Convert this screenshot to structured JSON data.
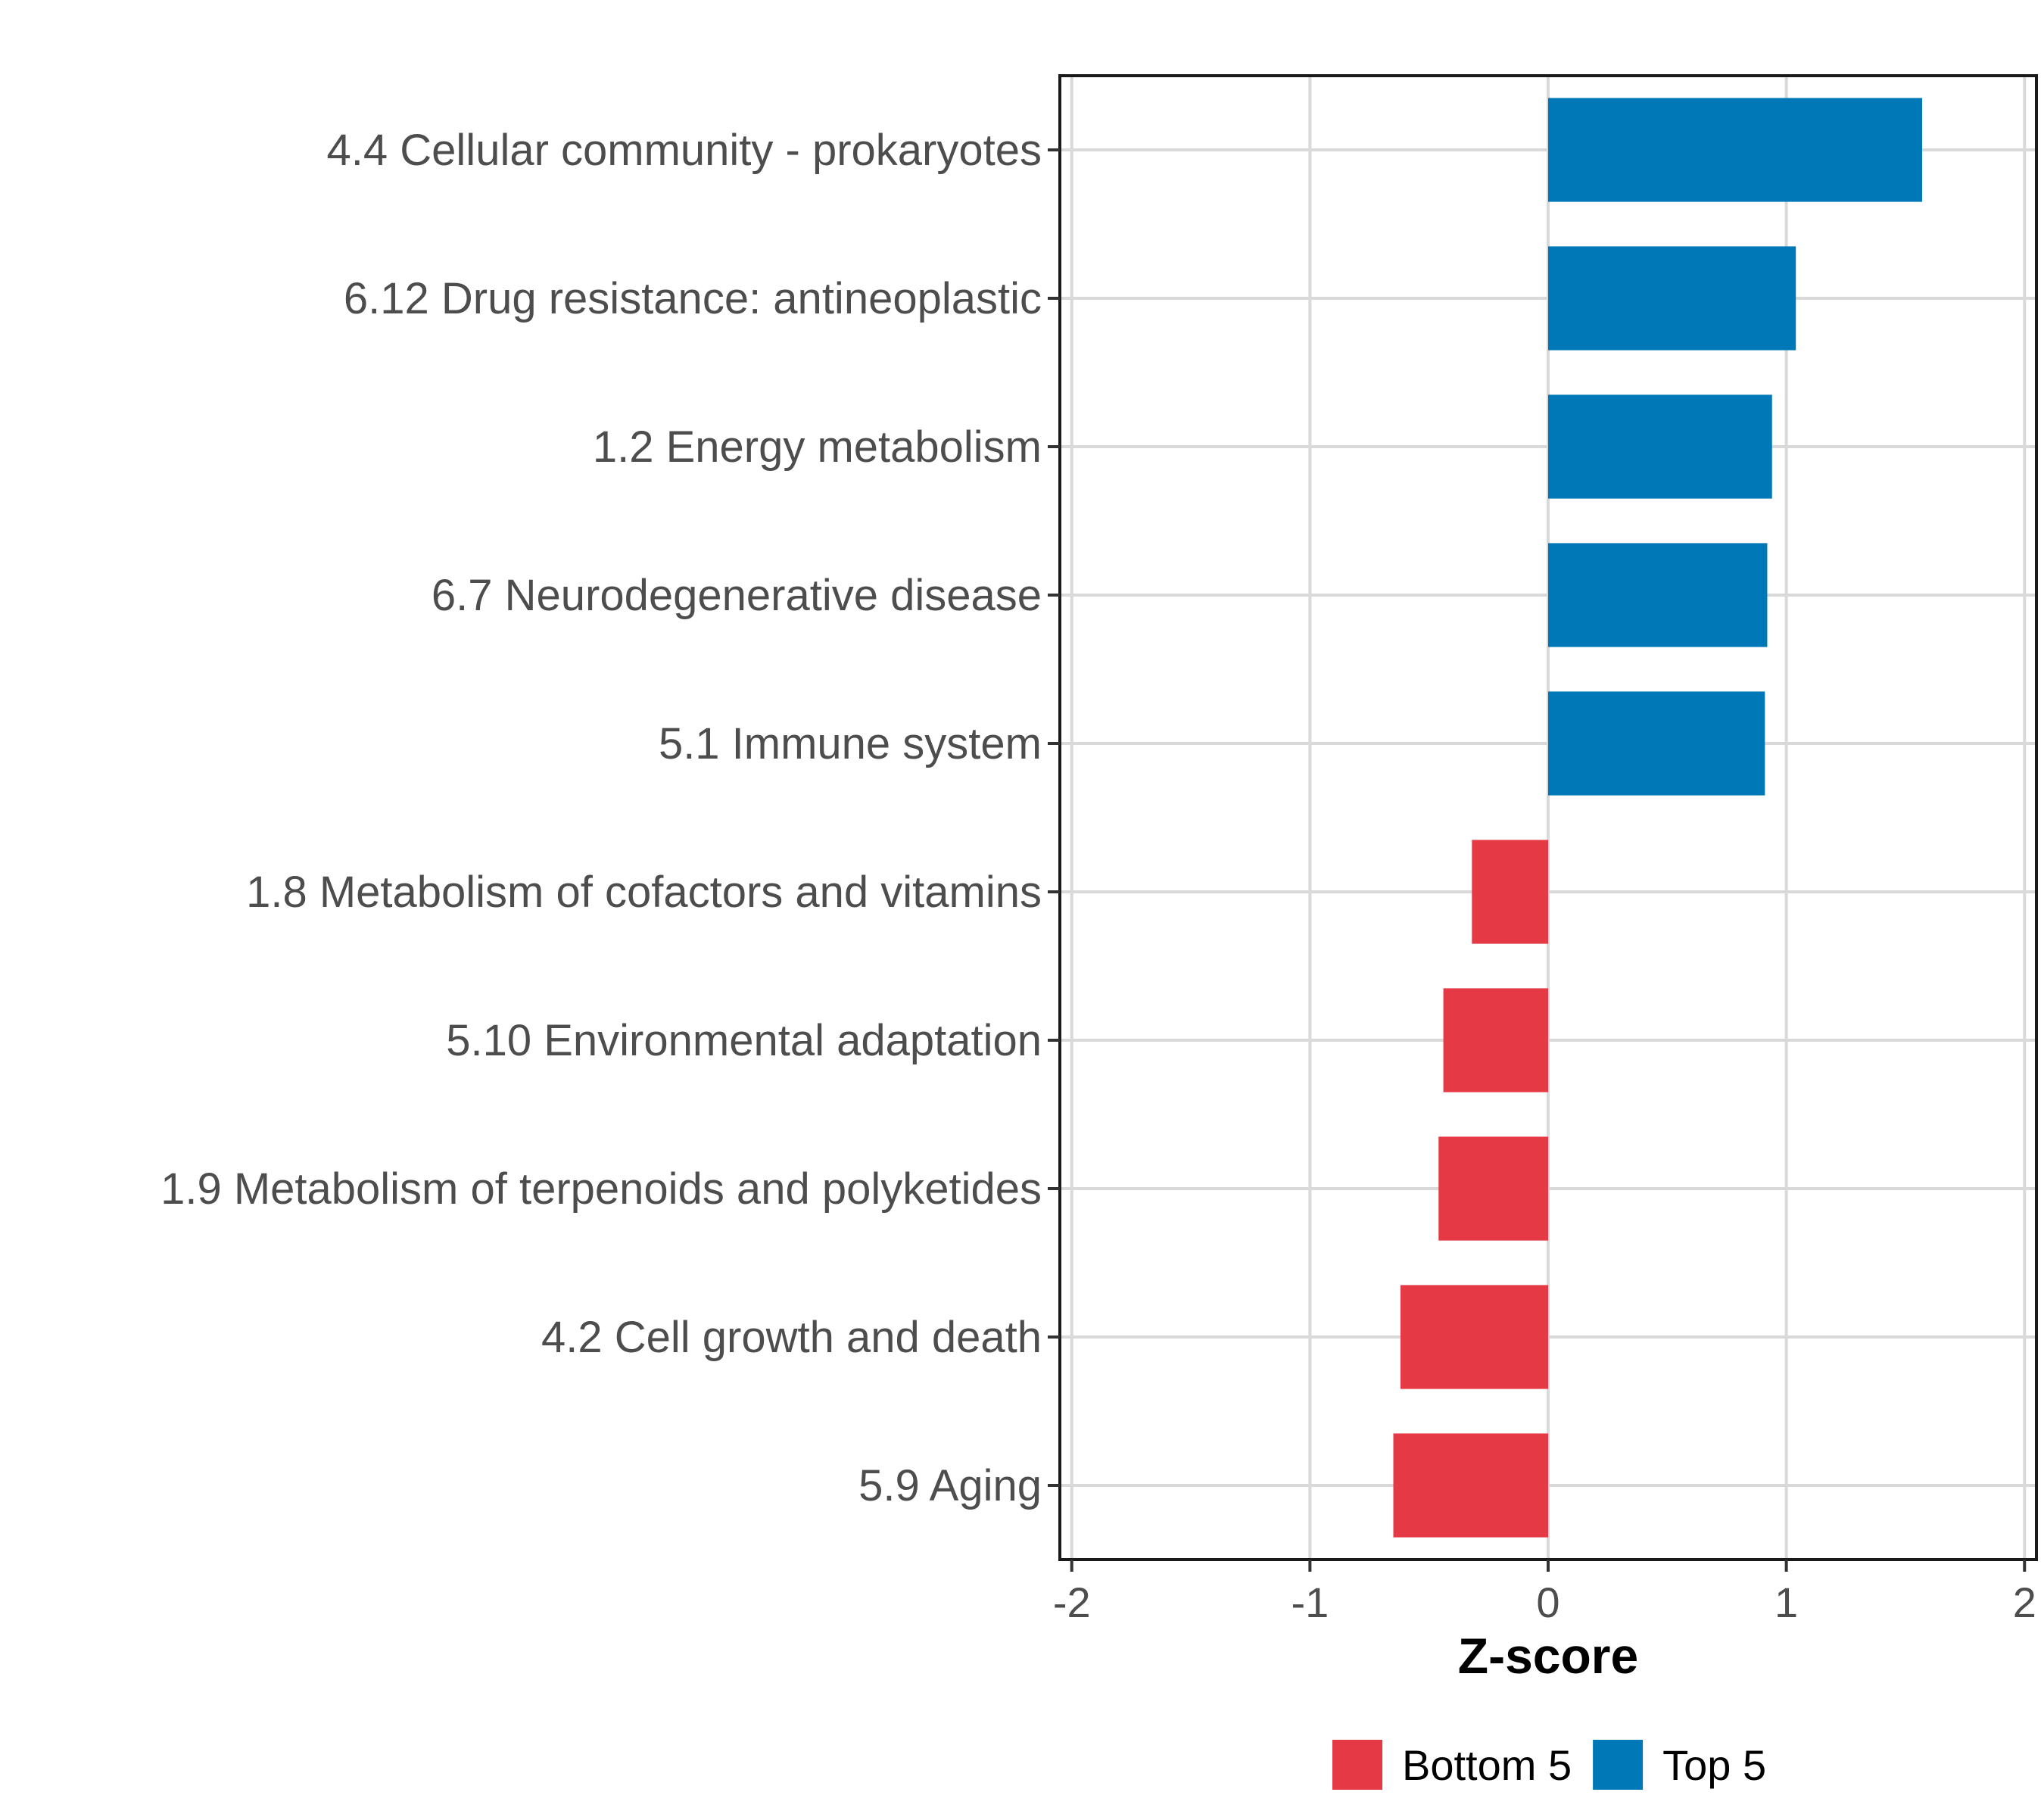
{
  "chart_data": {
    "type": "bar",
    "orientation": "horizontal",
    "title": "",
    "xlabel": "Z-score",
    "ylabel": "",
    "xlim": [
      -2.05,
      2.05
    ],
    "xticks": [
      -2,
      -1,
      0,
      1,
      2
    ],
    "xtick_labels": [
      "-2",
      "-1",
      "0",
      "1",
      "2"
    ],
    "grid": true,
    "legend_position": "bottom",
    "categories": [
      "4.4 Cellular community - prokaryotes",
      "6.12 Drug resistance: antineoplastic",
      "1.2 Energy metabolism",
      "6.7 Neurodegenerative disease",
      "5.1 Immune system",
      "1.8 Metabolism of cofactors and vitamins",
      "5.10 Environmental adaptation",
      "1.9 Metabolism of terpenoids and polyketides",
      "4.2 Cell growth and death",
      "5.9 Aging"
    ],
    "values": [
      1.57,
      1.04,
      0.94,
      0.92,
      0.91,
      -0.32,
      -0.44,
      -0.46,
      -0.62,
      -0.65
    ],
    "groups": [
      "Top 5",
      "Top 5",
      "Top 5",
      "Top 5",
      "Top 5",
      "Bottom 5",
      "Bottom 5",
      "Bottom 5",
      "Bottom 5",
      "Bottom 5"
    ],
    "legend": [
      {
        "name": "Bottom 5",
        "color": "#e63946"
      },
      {
        "name": "Top 5",
        "color": "#0077b6"
      }
    ]
  }
}
